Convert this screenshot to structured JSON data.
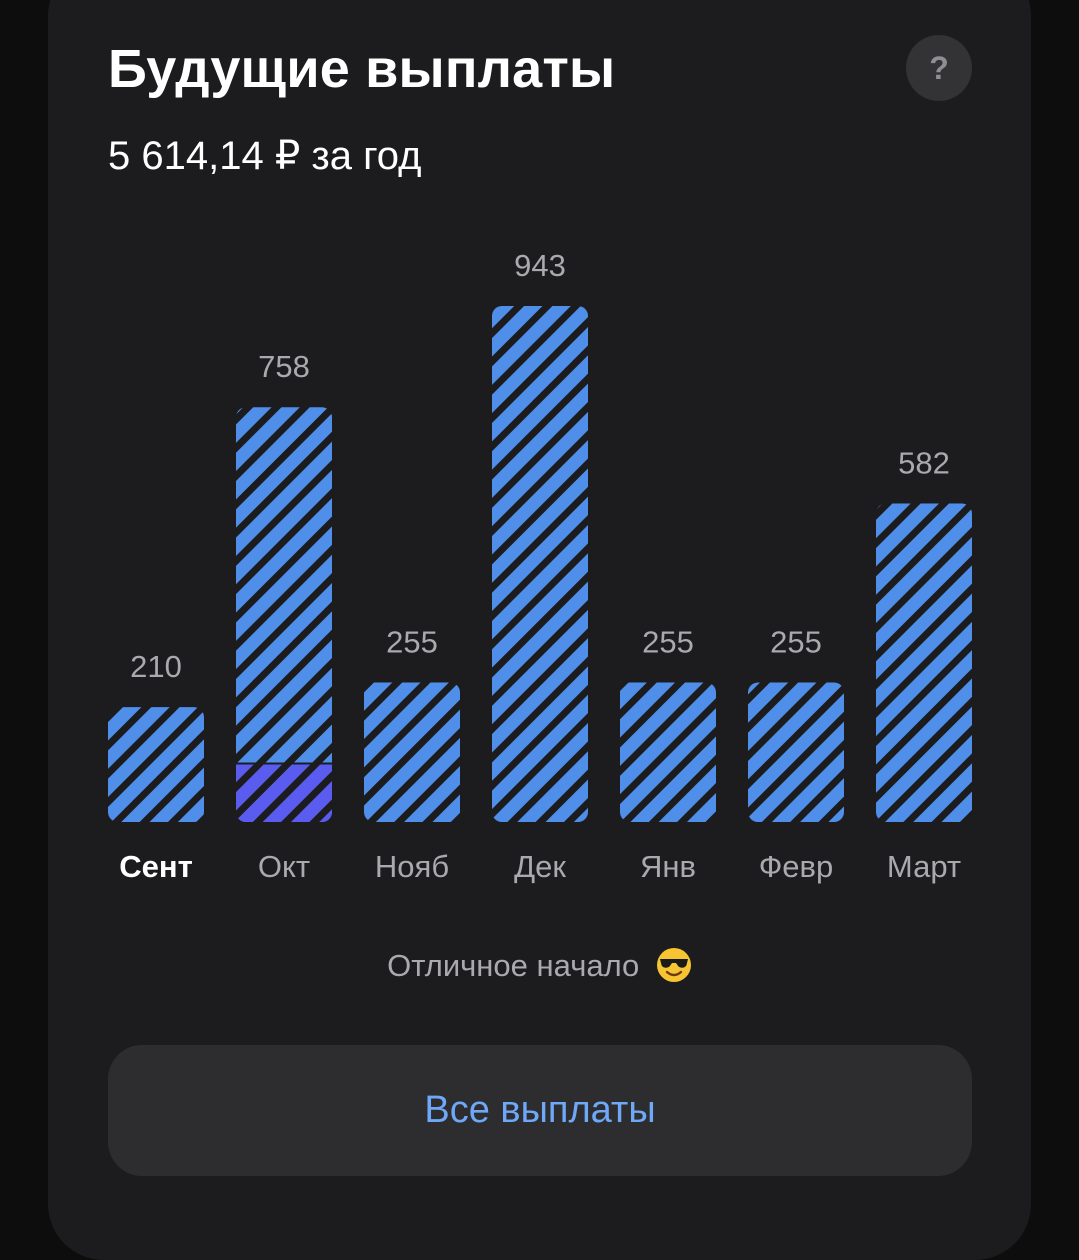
{
  "header": {
    "title": "Будущие выплаты",
    "subtitle": "5 614,14 ₽ за год",
    "help_label": "?"
  },
  "chart_data": {
    "type": "bar",
    "categories": [
      "Сент",
      "Окт",
      "Нояб",
      "Дек",
      "Янв",
      "Февр",
      "Март"
    ],
    "values": [
      210,
      758,
      255,
      943,
      255,
      255,
      582
    ],
    "value_labels": [
      "210",
      "758",
      "255",
      "943",
      "255",
      "255",
      "582"
    ],
    "highlighted_portion": [
      0,
      107,
      0,
      0,
      0,
      0,
      0
    ],
    "active_category": "Сент",
    "ylim": [
      0,
      943
    ],
    "grid": false,
    "bar_color": "#4f8fea",
    "stripe_color": "#1c1c1e",
    "highlight_color": "#5a5cf0"
  },
  "caption": {
    "text": "Отличное начало",
    "emoji": "smiling-face-with-sunglasses-icon"
  },
  "footer": {
    "all_payouts_label": "Все выплаты"
  },
  "colors": {
    "background": "#0d0d0e",
    "card": "#1c1c1e",
    "accent": "#6ea8f7"
  }
}
